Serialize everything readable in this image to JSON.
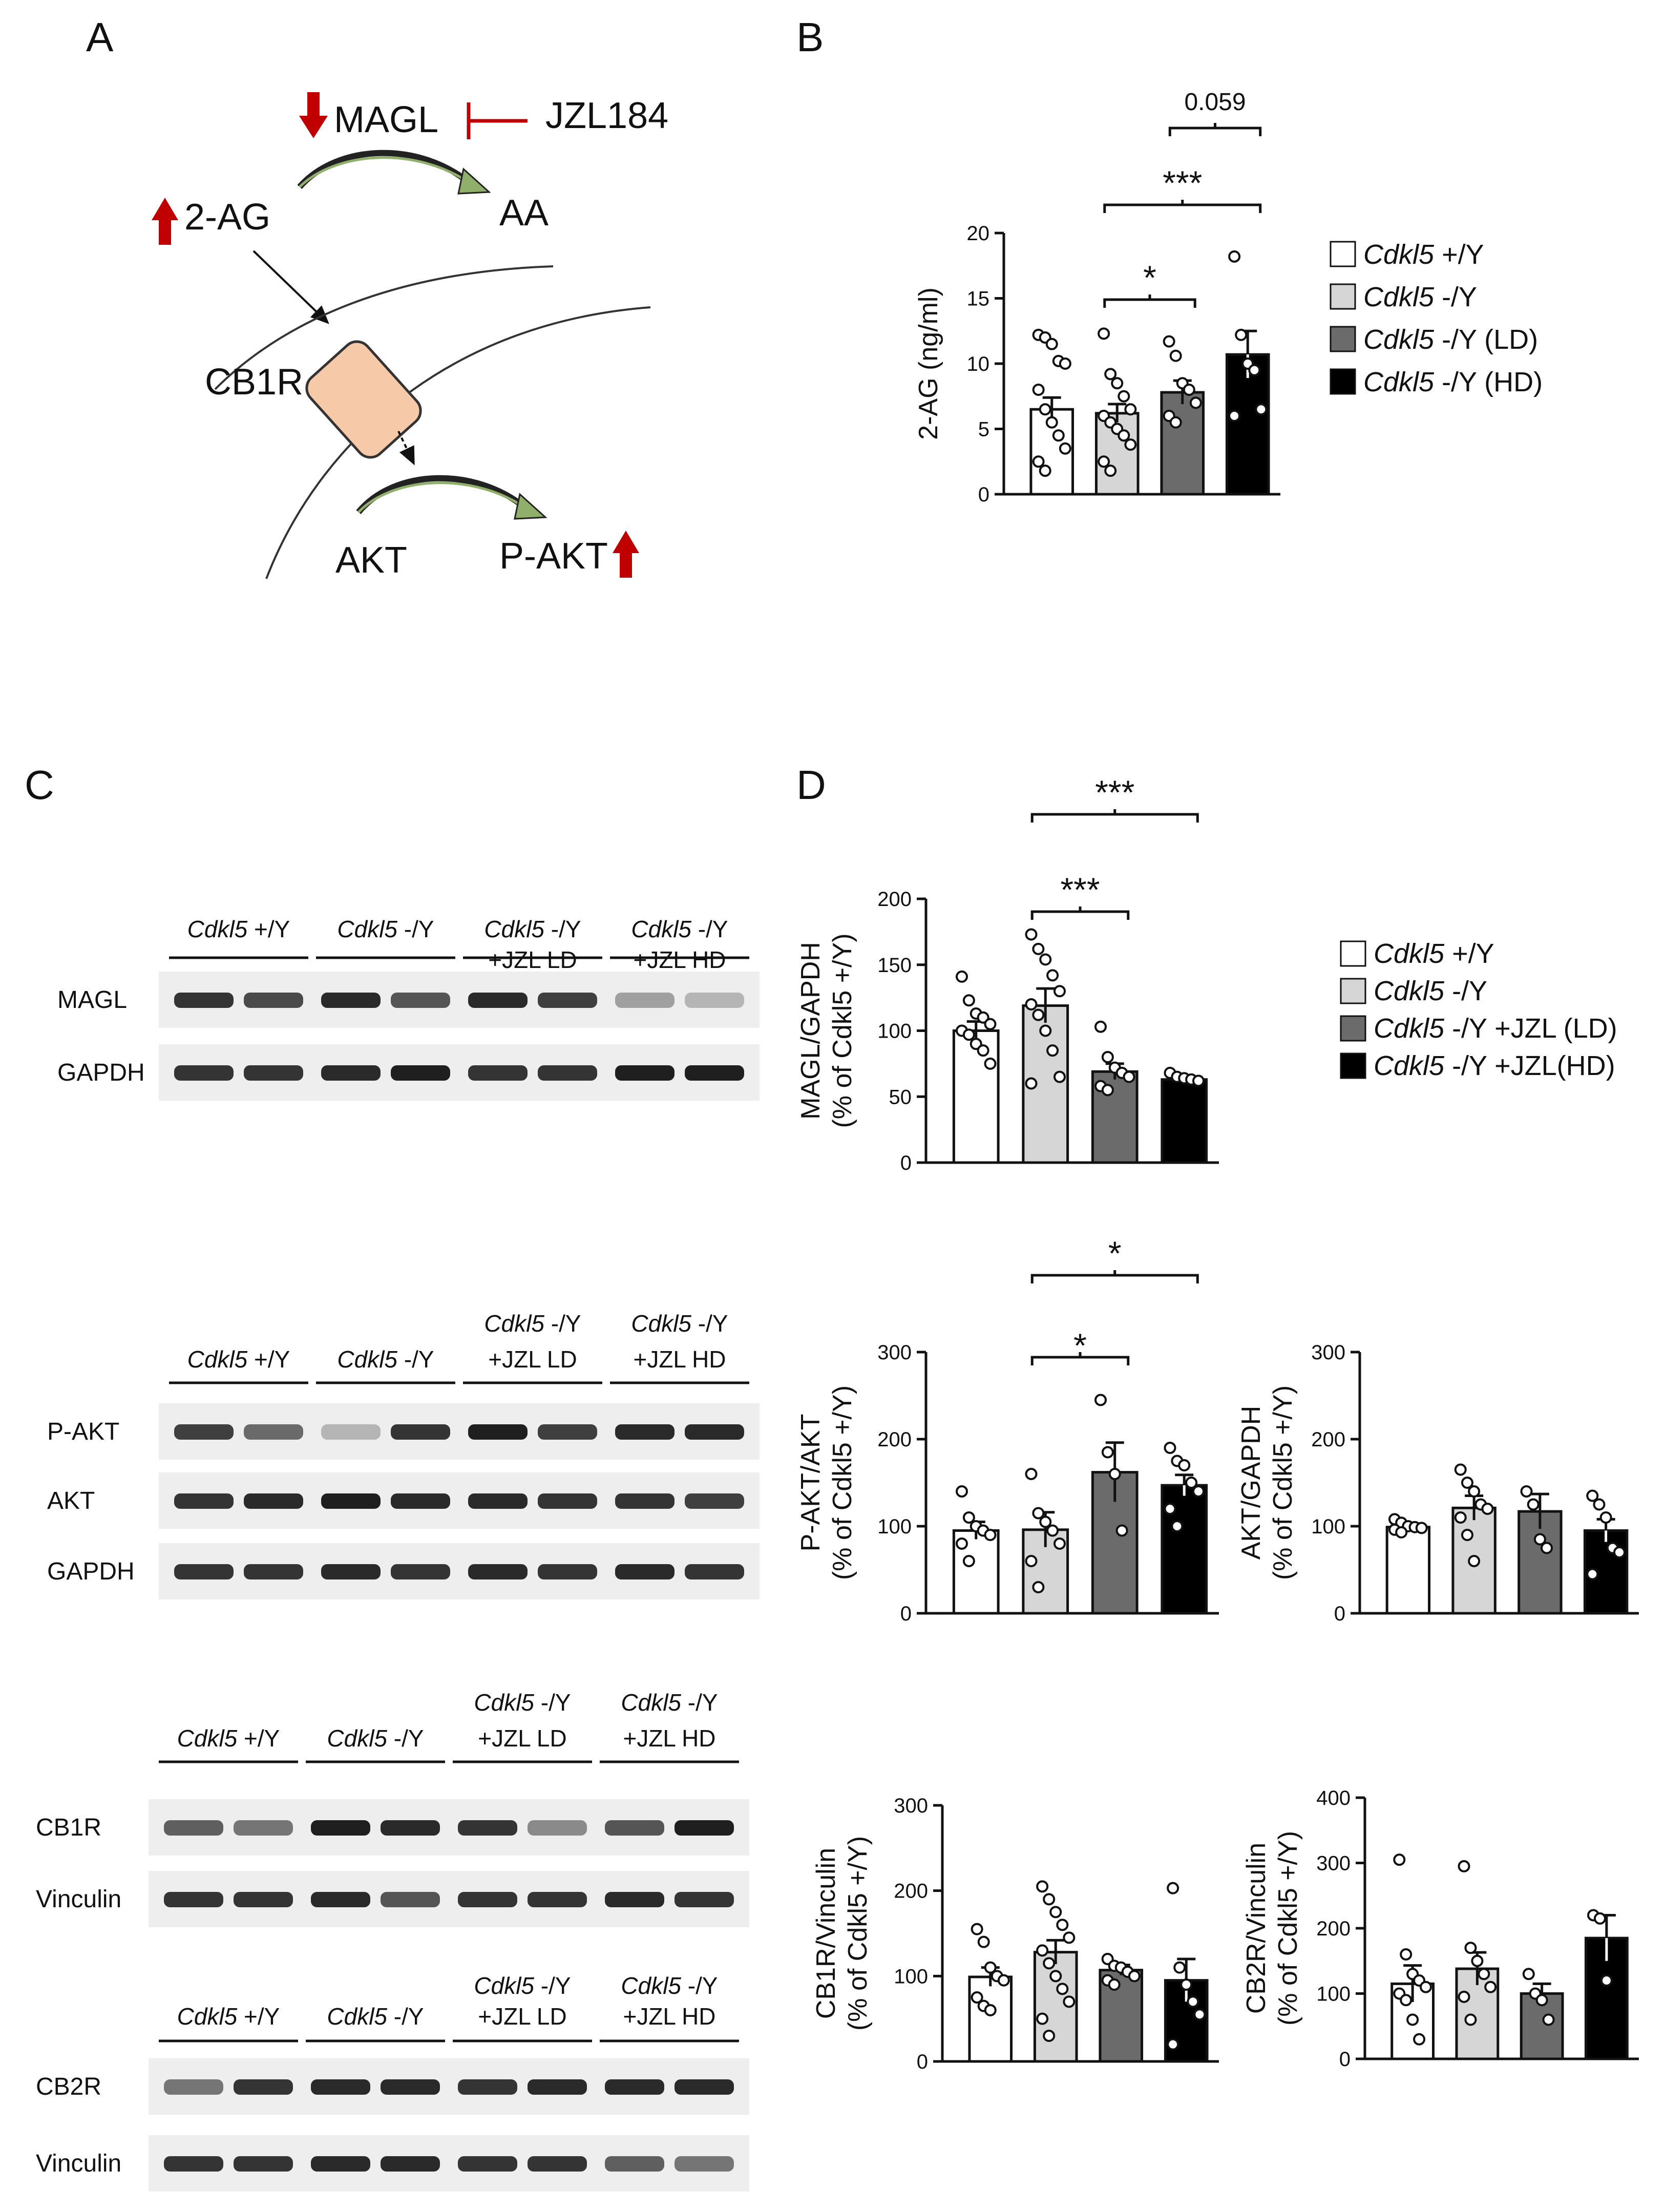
{
  "panels": {
    "a": "A",
    "b": "B",
    "c": "C",
    "d": "D"
  },
  "diagram": {
    "magl": "MAGL",
    "inhibitor": "JZL184",
    "substrate": "2-AG",
    "product": "AA",
    "receptor": "CB1R",
    "akt": "AKT",
    "pakt": "P-AKT"
  },
  "colors": {
    "wt": "#ffffff",
    "ko": "#d6d6d6",
    "ld": "#6b6b6b",
    "hd": "#000000",
    "arrow_red": "#c00000",
    "arrow_green": "#8faf6a",
    "receptor_fill": "#f6c9a8"
  },
  "legend_b": [
    {
      "italic": "Cdkl5",
      "rest": " +/Y",
      "color": "#ffffff"
    },
    {
      "italic": "Cdkl5",
      "rest": " -/Y",
      "color": "#d6d6d6"
    },
    {
      "italic": "Cdkl5",
      "rest": " -/Y (LD)",
      "color": "#6b6b6b"
    },
    {
      "italic": "Cdkl5",
      "rest": " -/Y (HD)",
      "color": "#000000"
    }
  ],
  "legend_d": [
    {
      "italic": "Cdkl5",
      "rest": " +/Y",
      "color": "#ffffff"
    },
    {
      "italic": "Cdkl5",
      "rest": " -/Y",
      "color": "#d6d6d6"
    },
    {
      "italic": "Cdkl5",
      "rest": " -/Y +JZL (LD)",
      "color": "#6b6b6b"
    },
    {
      "italic": "Cdkl5",
      "rest": " -/Y +JZL(HD)",
      "color": "#000000"
    }
  ],
  "western_blots": [
    {
      "groups": [
        {
          "italic": "Cdkl5",
          "rest": " +/Y",
          "line2": ""
        },
        {
          "italic": "Cdkl5",
          "rest": " -/Y",
          "line2": ""
        },
        {
          "italic": "Cdkl5",
          "rest": " -/Y",
          "line2": "+JZL LD"
        },
        {
          "italic": "Cdkl5",
          "rest": " -/Y",
          "line2": "+JZL HD"
        }
      ],
      "rows": [
        "MAGL",
        "GAPDH"
      ]
    },
    {
      "groups": [
        {
          "italic": "Cdkl5",
          "rest": " +/Y",
          "line2": ""
        },
        {
          "italic": "Cdkl5",
          "rest": " -/Y",
          "line2": ""
        },
        {
          "italic": "Cdkl5",
          "rest": " -/Y",
          "line2": "+JZL LD"
        },
        {
          "italic": "Cdkl5",
          "rest": " -/Y",
          "line2": "+JZL HD"
        }
      ],
      "rows": [
        "P-AKT",
        "AKT",
        "GAPDH"
      ]
    },
    {
      "groups": [
        {
          "italic": "Cdkl5",
          "rest": " +/Y",
          "line2": ""
        },
        {
          "italic": "Cdkl5",
          "rest": " -/Y",
          "line2": ""
        },
        {
          "italic": "Cdkl5",
          "rest": " -/Y",
          "line2": "+JZL LD"
        },
        {
          "italic": "Cdkl5",
          "rest": " -/Y",
          "line2": "+JZL HD"
        }
      ],
      "rows": [
        "CB1R",
        "Vinculin"
      ]
    },
    {
      "groups": [
        {
          "italic": "Cdkl5",
          "rest": " +/Y",
          "line2": ""
        },
        {
          "italic": "Cdkl5",
          "rest": " -/Y",
          "line2": ""
        },
        {
          "italic": "Cdkl5",
          "rest": " -/Y",
          "line2": "+JZL LD"
        },
        {
          "italic": "Cdkl5",
          "rest": " -/Y",
          "line2": "+JZL HD"
        }
      ],
      "rows": [
        "CB2R",
        "Vinculin"
      ]
    }
  ],
  "chart_data": [
    {
      "id": "b-2ag",
      "type": "bar",
      "ylabel": [
        "2-AG (ng/ml)"
      ],
      "ylim": [
        0,
        20
      ],
      "yticks": [
        0,
        5,
        10,
        15,
        20
      ],
      "values": [
        6.5,
        6.2,
        7.8,
        10.7
      ],
      "errors": [
        0.9,
        0.7,
        0.9,
        1.8
      ],
      "points": [
        [
          12.2,
          12.0,
          11.5,
          10.2,
          10.0,
          8.0,
          6.5,
          5.5,
          4.5,
          3.5,
          2.5,
          1.8
        ],
        [
          12.3,
          9.2,
          8.5,
          7.5,
          6.5,
          6.0,
          5.5,
          5.0,
          4.5,
          3.8,
          2.5,
          1.8
        ],
        [
          11.7,
          10.6,
          8.5,
          8.0,
          7.0,
          6.0,
          5.5
        ],
        [
          18.2,
          12.2,
          10.0,
          9.5,
          6.5,
          6.0
        ]
      ],
      "significance": [
        {
          "from": 1,
          "to": 2,
          "label": "*"
        },
        {
          "from": 1,
          "to": 3,
          "label": "***"
        },
        {
          "from": 2,
          "to": 3,
          "label": "0.059"
        }
      ]
    },
    {
      "id": "d-magl",
      "type": "bar",
      "ylabel": [
        "MAGL/GAPDH",
        "(% of Cdkl5 +/Y)"
      ],
      "ylim": [
        0,
        200
      ],
      "yticks": [
        0,
        50,
        100,
        150,
        200
      ],
      "values": [
        100,
        119,
        69,
        63
      ],
      "errors": [
        7,
        13,
        6,
        3
      ],
      "points": [
        [
          141,
          123,
          113,
          110,
          105,
          100,
          97,
          90,
          85,
          75
        ],
        [
          173,
          162,
          154,
          142,
          130,
          120,
          112,
          100,
          85,
          65,
          60
        ],
        [
          103,
          80,
          72,
          68,
          65,
          58,
          55
        ],
        [
          68,
          65,
          64,
          63,
          62
        ]
      ],
      "significance": [
        {
          "from": 1,
          "to": 2,
          "label": "***"
        },
        {
          "from": 1,
          "to": 3,
          "label": "***"
        }
      ]
    },
    {
      "id": "d-pakt",
      "type": "bar",
      "ylabel": [
        "P-AKT/AKT",
        "(% of Cdkl5 +/Y)"
      ],
      "ylim": [
        0,
        300
      ],
      "yticks": [
        0,
        100,
        200,
        300
      ],
      "values": [
        95,
        96,
        162,
        147
      ],
      "errors": [
        10,
        20,
        34,
        12
      ],
      "points": [
        [
          140,
          110,
          100,
          95,
          90,
          80,
          60
        ],
        [
          160,
          115,
          105,
          95,
          80,
          60,
          30
        ],
        [
          245,
          185,
          160,
          95
        ],
        [
          190,
          175,
          170,
          150,
          140,
          120,
          100
        ]
      ],
      "significance": [
        {
          "from": 1,
          "to": 2,
          "label": "*"
        },
        {
          "from": 1,
          "to": 3,
          "label": "*"
        }
      ]
    },
    {
      "id": "d-akt",
      "type": "bar",
      "ylabel": [
        "AKT/GAPDH",
        "(% of Cdkl5 +/Y)"
      ],
      "ylim": [
        0,
        300
      ],
      "yticks": [
        0,
        100,
        200,
        300
      ],
      "values": [
        99,
        121,
        117,
        95
      ],
      "errors": [
        4,
        14,
        20,
        13
      ],
      "points": [
        [
          108,
          104,
          100,
          99,
          98,
          96,
          93
        ],
        [
          165,
          150,
          140,
          125,
          120,
          110,
          90,
          60
        ],
        [
          140,
          125,
          85,
          75
        ],
        [
          135,
          125,
          110,
          75,
          70,
          45
        ]
      ],
      "significance": []
    },
    {
      "id": "d-cb1r",
      "type": "bar",
      "ylabel": [
        "CB1R/Vinculin",
        "(% of Cdkl5 +/Y)"
      ],
      "ylim": [
        0,
        300
      ],
      "yticks": [
        0,
        100,
        200,
        300
      ],
      "values": [
        99,
        128,
        107,
        95
      ],
      "errors": [
        11,
        14,
        6,
        25
      ],
      "points": [
        [
          155,
          140,
          110,
          100,
          95,
          75,
          65,
          60
        ],
        [
          205,
          190,
          175,
          160,
          145,
          130,
          115,
          100,
          85,
          70,
          50,
          30
        ],
        [
          120,
          112,
          110,
          105,
          100,
          95,
          90
        ],
        [
          203,
          110,
          90,
          70,
          55,
          20
        ]
      ],
      "significance": []
    },
    {
      "id": "d-cb2r",
      "type": "bar",
      "ylabel": [
        "CB2R/Vinculin",
        "(% of Cdkl5 +/Y)"
      ],
      "ylim": [
        0,
        400
      ],
      "yticks": [
        0,
        100,
        200,
        300,
        400
      ],
      "values": [
        115,
        138,
        100,
        185
      ],
      "errors": [
        28,
        25,
        15,
        35
      ],
      "points": [
        [
          305,
          160,
          130,
          120,
          110,
          100,
          90,
          60,
          30
        ],
        [
          295,
          170,
          150,
          130,
          110,
          95,
          60
        ],
        [
          130,
          100,
          90,
          60
        ],
        [
          220,
          215,
          120
        ]
      ],
      "significance": []
    }
  ]
}
